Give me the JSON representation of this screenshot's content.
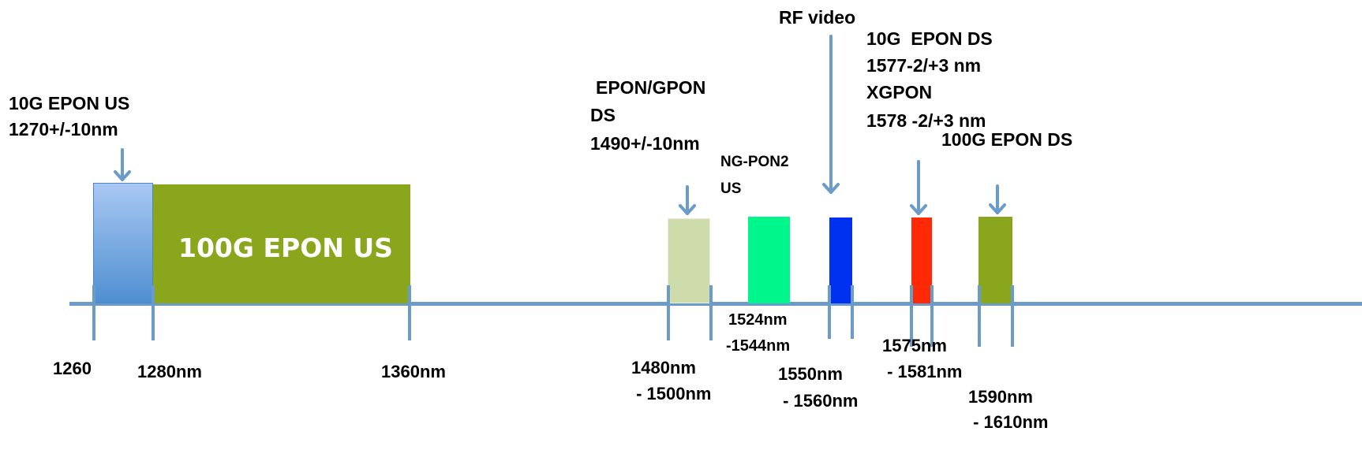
{
  "colors": {
    "axis": "#6b9bc8",
    "arrow": "#6b9bc8",
    "us10g_top": "#a9c8f2",
    "us10g_bottom": "#4f8fd1",
    "olive": "#8aa61c",
    "epon_gpon": "#cddcaa",
    "ngpon2": "#00f58a",
    "rf_video": "#0030f0",
    "red": "#ff2a05"
  },
  "labels": {
    "us10g": [
      "10G EPON US",
      "1270+/-10nm"
    ],
    "us100g": "100G EPON US",
    "epon_gpon": [
      "EPON/GPON",
      "DS",
      "1490+/-10nm"
    ],
    "ngpon2": [
      "NG-PON2",
      "US"
    ],
    "rf_video": "RF video",
    "ds10g": [
      "10G  EPON DS",
      "1577-2/+3 nm",
      "XGPON",
      "1578 -2/+3 nm"
    ],
    "ds100g": "100G EPON DS"
  },
  "axis_labels": {
    "l1260": "1260",
    "l1280": "1280nm",
    "l1360": "1360nm",
    "l1480": [
      "1480nm",
      " - 1500nm"
    ],
    "l1524": [
      "1524nm",
      "-1544nm"
    ],
    "l1550": [
      "1550nm",
      " - 1560nm"
    ],
    "l1575": [
      "1575nm",
      " - 1581nm"
    ],
    "l1590": [
      "1590nm",
      " - 1610nm"
    ]
  }
}
